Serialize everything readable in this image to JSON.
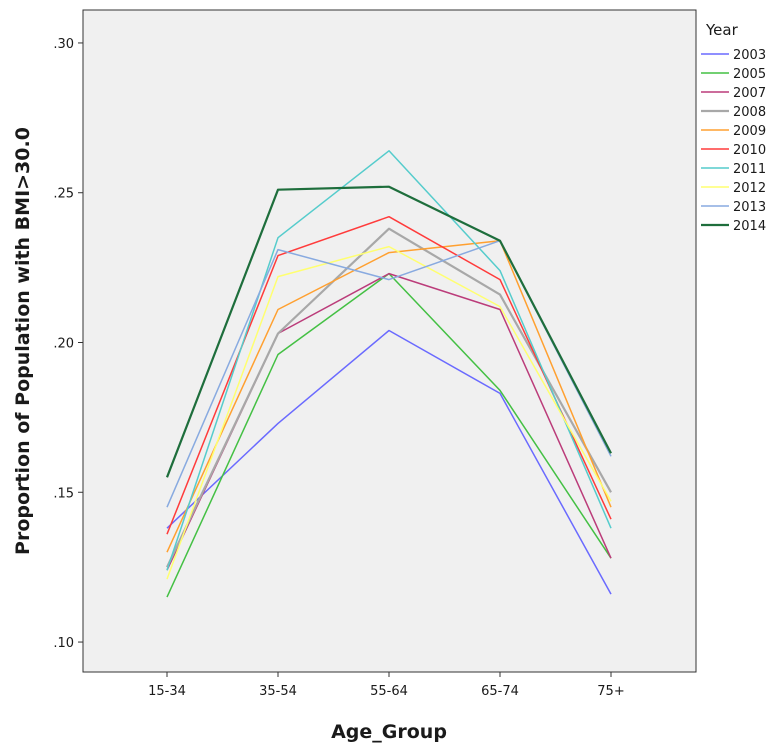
{
  "chart_data": {
    "type": "line",
    "title": "",
    "xlabel": "Age_Group",
    "ylabel": "Proportion of Population with BMI>30.0",
    "categories": [
      "15-34",
      "35-54",
      "55-64",
      "65-74",
      "75+"
    ],
    "y_ticks": [
      ".10",
      ".15",
      ".20",
      ".25",
      ".30"
    ],
    "ylim": [
      0.09,
      0.311
    ],
    "grid": false,
    "legend_title": "Year",
    "legend_position": "right",
    "plot_background": "#f0f0f0",
    "series": [
      {
        "name": "2003",
        "color": "#6a6aff",
        "values": [
          0.138,
          0.173,
          0.204,
          0.183,
          0.116
        ]
      },
      {
        "name": "2005",
        "color": "#44c044",
        "values": [
          0.115,
          0.196,
          0.223,
          0.184,
          0.128
        ]
      },
      {
        "name": "2007",
        "color": "#bb3c7a",
        "values": [
          0.124,
          0.203,
          0.223,
          0.211,
          0.128
        ]
      },
      {
        "name": "2008",
        "color": "#a8a8a8",
        "values": [
          0.125,
          0.203,
          0.238,
          0.216,
          0.15
        ]
      },
      {
        "name": "2009",
        "color": "#ffa030",
        "values": [
          0.13,
          0.211,
          0.23,
          0.234,
          0.145
        ]
      },
      {
        "name": "2010",
        "color": "#ff3b3b",
        "values": [
          0.136,
          0.229,
          0.242,
          0.221,
          0.141
        ]
      },
      {
        "name": "2011",
        "color": "#55cccc",
        "values": [
          0.124,
          0.235,
          0.264,
          0.224,
          0.138
        ]
      },
      {
        "name": "2012",
        "color": "#ffff70",
        "values": [
          0.121,
          0.222,
          0.232,
          0.212,
          0.147
        ]
      },
      {
        "name": "2013",
        "color": "#88aae0",
        "values": [
          0.145,
          0.231,
          0.221,
          0.234,
          0.162
        ]
      },
      {
        "name": "2014",
        "color": "#1e6e3c",
        "values": [
          0.155,
          0.251,
          0.252,
          0.234,
          0.163
        ]
      }
    ]
  }
}
